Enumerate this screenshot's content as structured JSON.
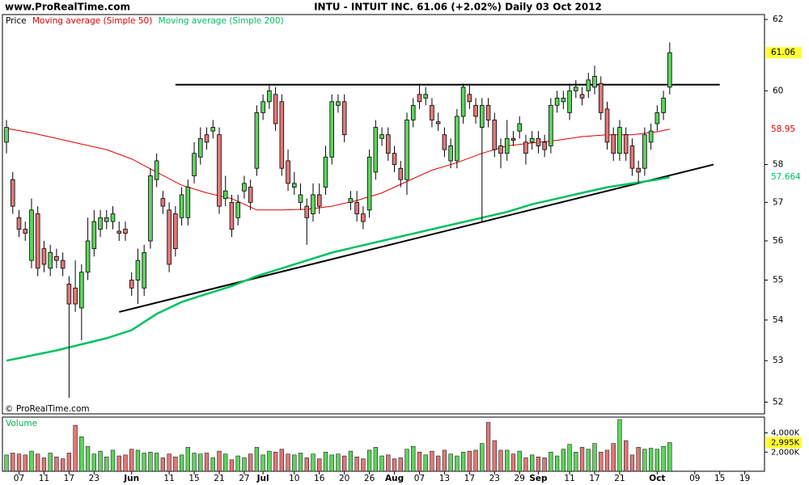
{
  "header": {
    "site": "www.ProRealTime.com",
    "title": "INTU - INTUIT INC.    61.06 (+2.02%)    Daily  03 Oct 2012"
  },
  "chart_data": {
    "type": "candlestick",
    "price_label": "Price",
    "copyright": "© ProRealTime.com",
    "up_color": "#5fd35f",
    "down_color": "#e07878",
    "log_scale": true,
    "ylim": [
      51.72,
      62.14
    ],
    "yticks": [
      52,
      53,
      54,
      55,
      56,
      57,
      58,
      60,
      62
    ],
    "xlim": [
      -0.65,
      121.15
    ],
    "xticks": [
      {
        "value": 2,
        "label": "07"
      },
      {
        "value": 6,
        "label": "11"
      },
      {
        "value": 10,
        "label": "17"
      },
      {
        "value": 14,
        "label": "23"
      },
      {
        "value": 20,
        "label": "Jun"
      },
      {
        "value": 26,
        "label": "11"
      },
      {
        "value": 30,
        "label": "15"
      },
      {
        "value": 34,
        "label": "21"
      },
      {
        "value": 38,
        "label": "27"
      },
      {
        "value": 41,
        "label": "Jul"
      },
      {
        "value": 46,
        "label": "10"
      },
      {
        "value": 50,
        "label": "16"
      },
      {
        "value": 54,
        "label": "20"
      },
      {
        "value": 58,
        "label": "26"
      },
      {
        "value": 62,
        "label": "Aug"
      },
      {
        "value": 66,
        "label": "07"
      },
      {
        "value": 70,
        "label": "13"
      },
      {
        "value": 74,
        "label": "17"
      },
      {
        "value": 78,
        "label": "23"
      },
      {
        "value": 82,
        "label": "29"
      },
      {
        "value": 85,
        "label": "Sep"
      },
      {
        "value": 90,
        "label": "11"
      },
      {
        "value": 94,
        "label": "17"
      },
      {
        "value": 98,
        "label": "21"
      },
      {
        "value": 104,
        "label": "Oct"
      },
      {
        "value": 110,
        "label": "09"
      },
      {
        "value": 114,
        "label": "15"
      },
      {
        "value": 118,
        "label": "19"
      }
    ],
    "open": [
      58.6,
      57.6,
      56.6,
      56.3,
      55.5,
      56.7,
      55.8,
      55.3,
      55.6,
      55.5,
      54.9,
      54.8,
      54.3,
      55.2,
      55.8,
      56.3,
      56.5,
      56.5,
      56.25,
      56.3,
      55.0,
      55.0,
      54.8,
      56.0,
      57.6,
      57.1,
      56.8,
      56.7,
      56.6,
      56.6,
      57.7,
      58.2,
      58.8,
      58.9,
      58.8,
      57.1,
      57.0,
      56.6,
      57.3,
      57.4,
      57.9,
      59.4,
      59.7,
      59.9,
      59.7,
      58.1,
      57.4,
      57.0,
      56.9,
      56.7,
      57.2,
      57.4,
      58.2,
      59.6,
      59.7,
      57.0,
      57.0,
      56.7,
      56.8,
      57.8,
      58.7,
      58.8,
      58.3,
      57.9,
      57.6,
      59.2,
      59.9,
      59.8,
      59.6,
      59.15,
      58.8,
      58.1,
      58.1,
      59.3,
      59.9,
      59.6,
      59.0,
      59.6,
      59.2,
      58.5,
      58.3,
      58.7,
      58.9,
      58.6,
      58.6,
      58.7,
      58.6,
      58.5,
      59.6,
      59.7,
      59.4,
      60.0,
      59.9,
      60.0,
      60.1,
      60.2,
      59.5,
      58.8,
      58.3,
      58.8,
      58.5,
      57.9,
      57.9,
      58.6,
      59.1,
      59.4,
      60.1
    ],
    "high": [
      59.2,
      57.8,
      56.8,
      56.5,
      57.1,
      56.9,
      56.0,
      55.9,
      55.8,
      55.7,
      55.1,
      55.5,
      55.4,
      56.6,
      56.8,
      56.8,
      56.8,
      56.9,
      56.5,
      56.5,
      55.2,
      55.8,
      55.9,
      57.9,
      58.3,
      57.3,
      57.0,
      56.9,
      57.4,
      57.6,
      58.6,
      59.0,
      59.0,
      59.2,
      59.0,
      57.7,
      57.2,
      57.2,
      57.7,
      57.6,
      59.6,
      59.9,
      60.2,
      60.1,
      59.9,
      58.4,
      57.8,
      57.5,
      57.1,
      57.5,
      57.5,
      58.5,
      59.9,
      59.9,
      59.9,
      57.3,
      57.3,
      56.9,
      58.4,
      59.2,
      59.0,
      59.0,
      58.5,
      58.1,
      59.4,
      59.8,
      60.2,
      60.1,
      59.8,
      59.4,
      59.0,
      58.7,
      59.5,
      60.2,
      60.2,
      59.8,
      59.8,
      59.8,
      59.4,
      58.7,
      59.2,
      58.9,
      59.3,
      58.8,
      58.9,
      58.9,
      58.8,
      59.8,
      60.0,
      60.0,
      60.2,
      60.3,
      60.1,
      60.5,
      60.7,
      60.4,
      59.7,
      59.0,
      59.2,
      59.0,
      58.7,
      58.1,
      59.0,
      59.1,
      59.6,
      60.0,
      61.35
    ],
    "low": [
      58.3,
      56.7,
      56.1,
      56.0,
      55.3,
      55.1,
      55.2,
      55.1,
      55.3,
      55.1,
      52.1,
      54.2,
      53.5,
      55.0,
      55.6,
      56.1,
      56.3,
      56.3,
      56.0,
      56.0,
      54.6,
      54.4,
      54.6,
      55.8,
      57.4,
      56.7,
      55.2,
      55.6,
      56.4,
      56.4,
      57.5,
      58.0,
      58.4,
      58.7,
      56.7,
      56.9,
      56.1,
      56.4,
      57.1,
      56.8,
      57.7,
      59.2,
      59.5,
      58.9,
      57.7,
      57.3,
      57.2,
      56.8,
      55.9,
      56.5,
      56.7,
      57.2,
      58.0,
      59.4,
      58.6,
      56.8,
      56.5,
      56.3,
      56.6,
      57.6,
      58.5,
      58.1,
      57.8,
      57.4,
      57.2,
      59.0,
      59.5,
      59.6,
      59.0,
      58.9,
      58.2,
      57.9,
      57.9,
      59.1,
      59.5,
      59.1,
      56.5,
      59.0,
      58.2,
      57.9,
      58.1,
      58.5,
      58.7,
      58.0,
      58.4,
      58.3,
      58.2,
      58.3,
      59.4,
      59.5,
      59.2,
      59.8,
      59.6,
      59.8,
      59.9,
      59.2,
      58.4,
      58.1,
      58.1,
      58.1,
      57.7,
      57.5,
      57.7,
      58.4,
      58.9,
      59.2,
      59.9
    ],
    "close": [
      59.0,
      56.9,
      56.3,
      56.2,
      56.8,
      55.3,
      55.4,
      55.7,
      55.5,
      55.3,
      54.4,
      54.4,
      55.2,
      56.0,
      56.5,
      56.6,
      56.6,
      56.7,
      56.2,
      56.2,
      54.8,
      55.5,
      55.7,
      57.7,
      58.1,
      56.9,
      55.4,
      55.8,
      57.2,
      57.4,
      58.3,
      58.7,
      58.6,
      59.0,
      56.9,
      57.3,
      56.3,
      57.0,
      57.5,
      57.0,
      59.4,
      59.7,
      60.0,
      59.1,
      57.9,
      57.5,
      57.5,
      57.2,
      56.6,
      57.2,
      56.9,
      58.2,
      59.7,
      59.7,
      58.8,
      57.1,
      56.7,
      56.5,
      58.2,
      59.0,
      58.8,
      58.3,
      58.0,
      57.6,
      59.2,
      59.6,
      59.7,
      59.9,
      59.2,
      59.1,
      58.4,
      58.5,
      59.3,
      60.1,
      59.7,
      59.3,
      59.6,
      59.2,
      58.4,
      58.3,
      58.7,
      58.65,
      59.1,
      58.3,
      58.7,
      58.5,
      58.4,
      59.6,
      59.8,
      59.8,
      60.0,
      60.1,
      59.8,
      60.3,
      60.4,
      59.4,
      58.6,
      58.3,
      59.0,
      58.3,
      57.9,
      57.8,
      58.8,
      58.9,
      59.4,
      59.8,
      61.06
    ],
    "moving_averages": [
      {
        "name": "Moving average (Simple 50)",
        "color": "#e00000",
        "width": 1,
        "x": [
          0,
          4,
          8,
          12,
          16,
          20,
          24,
          28,
          32,
          36,
          40,
          44,
          48,
          52,
          56,
          60,
          64,
          68,
          72,
          76,
          80,
          84,
          88,
          92,
          96,
          100,
          104,
          106
        ],
        "values": [
          58.97,
          58.85,
          58.7,
          58.55,
          58.4,
          58.15,
          57.8,
          57.45,
          57.25,
          57.1,
          56.8,
          56.8,
          56.82,
          56.9,
          57.05,
          57.25,
          57.55,
          57.85,
          58.05,
          58.3,
          58.5,
          58.58,
          58.65,
          58.75,
          58.8,
          58.8,
          58.88,
          58.95
        ]
      },
      {
        "name": "Moving average (Simple 200)",
        "color": "#00c060",
        "width": 2.5,
        "x": [
          0,
          8,
          16,
          20,
          24,
          28,
          32,
          36,
          40,
          44,
          48,
          52,
          56,
          60,
          64,
          68,
          72,
          76,
          80,
          84,
          88,
          92,
          96,
          100,
          104,
          106
        ],
        "values": [
          53.0,
          53.25,
          53.55,
          53.75,
          54.15,
          54.45,
          54.65,
          54.85,
          55.1,
          55.3,
          55.5,
          55.7,
          55.85,
          56.0,
          56.15,
          56.3,
          56.45,
          56.6,
          56.75,
          56.95,
          57.1,
          57.25,
          57.4,
          57.5,
          57.6,
          57.664
        ]
      }
    ],
    "trendlines": [
      {
        "x": [
          27,
          114
        ],
        "y": [
          60.17,
          60.17
        ]
      },
      {
        "x": [
          18,
          113
        ],
        "y": [
          54.2,
          58.0
        ]
      }
    ],
    "volume": {
      "label": "Volume",
      "ylim": [
        0,
        5650
      ],
      "yticks": [
        {
          "value": 2000,
          "label": "2,000K"
        },
        {
          "value": 4000,
          "label": "4,000K"
        }
      ],
      "current": {
        "value": 2995,
        "label": "2,995K"
      },
      "values": [
        1700,
        1900,
        1800,
        1700,
        2100,
        1800,
        1400,
        1900,
        1500,
        1300,
        1900,
        4800,
        3600,
        2600,
        1800,
        2100,
        1500,
        2200,
        1600,
        1700,
        2300,
        2200,
        1900,
        2000,
        1900,
        1400,
        1800,
        1500,
        1700,
        2500,
        1900,
        1800,
        1900,
        1400,
        2100,
        1800,
        1200,
        1600,
        1400,
        1800,
        2500,
        1700,
        2100,
        2000,
        2300,
        1800,
        1700,
        1900,
        1400,
        1800,
        1300,
        2000,
        1700,
        1800,
        1600,
        2100,
        1500,
        1300,
        2200,
        2500,
        1600,
        1700,
        1300,
        1400,
        2300,
        2600,
        2000,
        1700,
        2100,
        1600,
        2200,
        1800,
        1600,
        2000,
        2100,
        2200,
        2900,
        5100,
        3200,
        2200,
        2200,
        1800,
        2100,
        1400,
        1700,
        1500,
        1400,
        2000,
        1600,
        2300,
        2800,
        2000,
        2500,
        2300,
        2900,
        2000,
        2200,
        2900,
        5400,
        3200,
        1700,
        2500,
        2300,
        2400,
        2300,
        2600,
        2995
      ]
    }
  }
}
